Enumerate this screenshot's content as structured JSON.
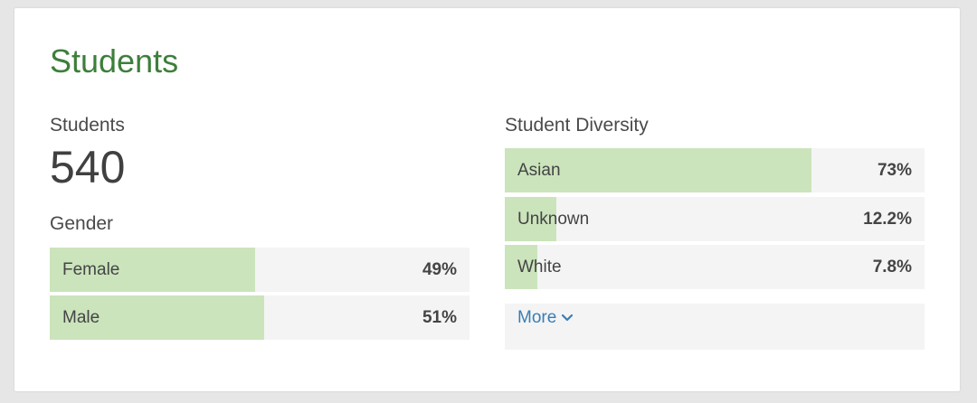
{
  "title": "Students",
  "students": {
    "label": "Students",
    "count": "540"
  },
  "gender": {
    "label": "Gender",
    "rows": [
      {
        "label": "Female",
        "value_text": "49%",
        "fraction": 0.49
      },
      {
        "label": "Male",
        "value_text": "51%",
        "fraction": 0.51
      }
    ]
  },
  "diversity": {
    "label": "Student Diversity",
    "rows": [
      {
        "label": "Asian",
        "value_text": "73%",
        "fraction": 0.73
      },
      {
        "label": "Unknown",
        "value_text": "12.2%",
        "fraction": 0.122
      },
      {
        "label": "White",
        "value_text": "7.8%",
        "fraction": 0.078
      }
    ],
    "more_label": "More"
  },
  "colors": {
    "title": "#3d7f3b",
    "bar_fill": "#cbe4bc",
    "bar_track": "#f4f4f4",
    "link": "#3a7db4"
  },
  "icons": {
    "more": "chevron-down-icon"
  }
}
